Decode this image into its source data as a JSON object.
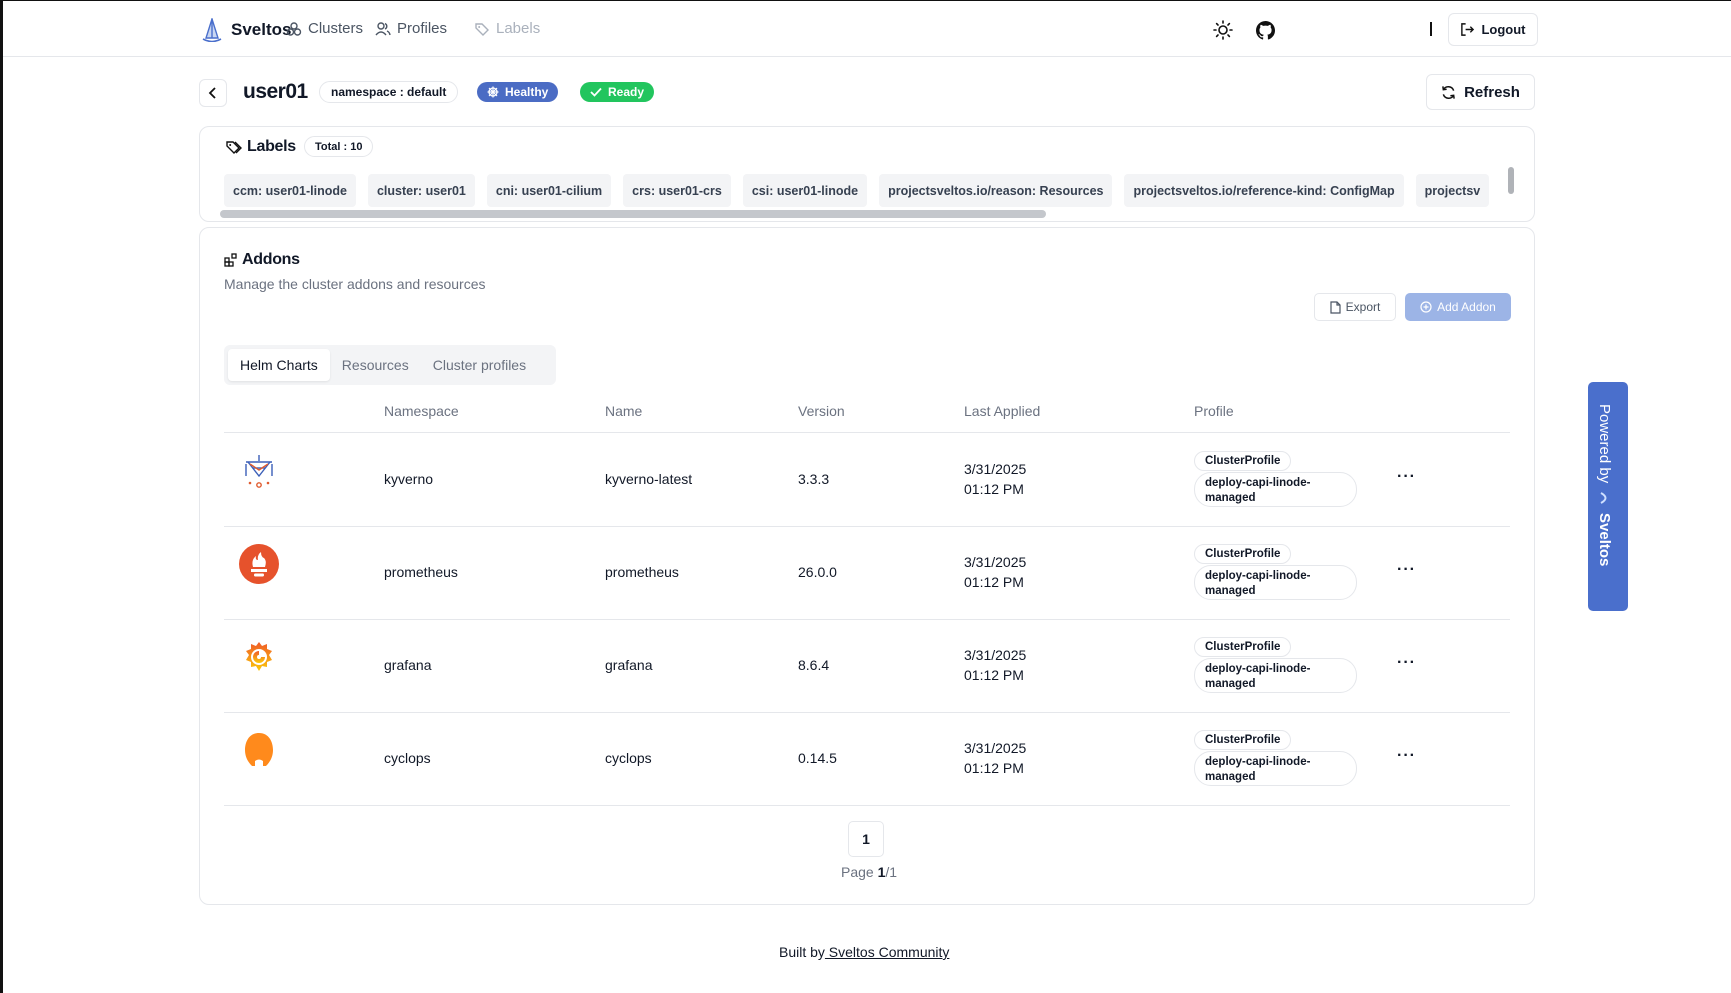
{
  "header": {
    "brand": "Sveltos",
    "nav": [
      {
        "label": "Clusters",
        "icon": "clusters-icon"
      },
      {
        "label": "Profiles",
        "icon": "users-icon"
      },
      {
        "label": "Labels",
        "icon": "tag-icon",
        "disabled": true
      }
    ],
    "logout_label": "Logout"
  },
  "cluster": {
    "name": "user01",
    "namespace_badge": "namespace : default",
    "health": "Healthy",
    "status": "Ready",
    "refresh_label": "Refresh"
  },
  "labels": {
    "title": "Labels",
    "total": "Total : 10",
    "items": [
      "ccm: user01-linode",
      "cluster: user01",
      "cni: user01-cilium",
      "crs: user01-crs",
      "csi: user01-linode",
      "projectsveltos.io/reason: Resources",
      "projectsveltos.io/reference-kind: ConfigMap",
      "projectsv"
    ]
  },
  "addons": {
    "title": "Addons",
    "subtitle": "Manage the cluster addons and resources",
    "export_label": "Export",
    "add_label": "Add Addon",
    "tabs": [
      "Helm Charts",
      "Resources",
      "Cluster profiles"
    ],
    "active_tab": 0,
    "columns": [
      "Namespace",
      "Name",
      "Version",
      "Last Applied",
      "Profile"
    ],
    "rows": [
      {
        "logo": "kyverno-logo",
        "namespace": "kyverno",
        "name": "kyverno-latest",
        "version": "3.3.3",
        "date": "3/31/2025",
        "time": "01:12 PM",
        "profile_kind": "ClusterProfile",
        "profile_name": "deploy-capi-linode-managed"
      },
      {
        "logo": "prometheus-logo",
        "namespace": "prometheus",
        "name": "prometheus",
        "version": "26.0.0",
        "date": "3/31/2025",
        "time": "01:12 PM",
        "profile_kind": "ClusterProfile",
        "profile_name": "deploy-capi-linode-managed"
      },
      {
        "logo": "grafana-logo",
        "namespace": "grafana",
        "name": "grafana",
        "version": "8.6.4",
        "date": "3/31/2025",
        "time": "01:12 PM",
        "profile_kind": "ClusterProfile",
        "profile_name": "deploy-capi-linode-managed"
      },
      {
        "logo": "cyclops-logo",
        "namespace": "cyclops",
        "name": "cyclops",
        "version": "0.14.5",
        "date": "3/31/2025",
        "time": "01:12 PM",
        "profile_kind": "ClusterProfile",
        "profile_name": "deploy-capi-linode-managed"
      }
    ],
    "row_menu": "···"
  },
  "pagination": {
    "current": "1",
    "label_prefix": "Page ",
    "page": "1",
    "total_suffix": "/1"
  },
  "powered_by": {
    "prefix": "Powered by",
    "brand": "Sveltos"
  },
  "footer": {
    "prefix": "Built by",
    "link": " Sveltos Community"
  },
  "colors": {
    "primary": "#4b6cc4",
    "ready": "#22c55e",
    "add_button": "#9cb4e6"
  }
}
